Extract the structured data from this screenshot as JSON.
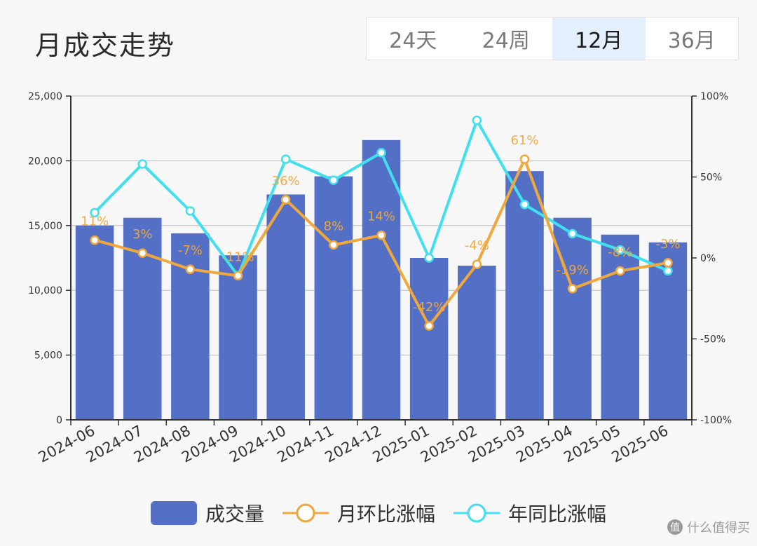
{
  "title": "月成交走势",
  "range_tabs": [
    {
      "label": "24天",
      "active": false
    },
    {
      "label": "24周",
      "active": false
    },
    {
      "label": "12月",
      "active": true
    },
    {
      "label": "36月",
      "active": false
    }
  ],
  "colors": {
    "bar": "#5470c6",
    "mom": "#f0a83c",
    "yoy": "#40e0ee",
    "active_tab_bg": "#e3effd"
  },
  "chart_data": {
    "type": "bar",
    "categories": [
      "2024-06",
      "2024-07",
      "2024-08",
      "2024-09",
      "2024-10",
      "2024-11",
      "2024-12",
      "2025-01",
      "2025-02",
      "2025-03",
      "2025-04",
      "2025-05",
      "2025-06"
    ],
    "left_axis": {
      "ylim": [
        0,
        25000
      ],
      "ticks": [
        0,
        5000,
        10000,
        15000,
        20000,
        25000
      ],
      "tick_labels": [
        "0",
        "5,000",
        "10,000",
        "15,000",
        "20,000",
        "25,000"
      ]
    },
    "right_axis": {
      "ylim": [
        -100,
        100
      ],
      "ticks": [
        -100,
        -50,
        0,
        50,
        100
      ],
      "tick_labels": [
        "-100%",
        "-50%",
        "0%",
        "50%",
        "100%"
      ]
    },
    "grid": true,
    "legend_position": "bottom",
    "series": [
      {
        "name": "成交量",
        "type": "bar",
        "axis": "left",
        "values": [
          15000,
          15600,
          14400,
          12700,
          17400,
          18800,
          21600,
          12500,
          11900,
          19200,
          15600,
          14300,
          13700
        ]
      },
      {
        "name": "月环比涨幅",
        "type": "line",
        "axis": "right",
        "values": [
          11,
          3,
          -7,
          -11,
          36,
          8,
          14,
          -42,
          -4,
          61,
          -19,
          -8,
          -3
        ],
        "labels": [
          "11%",
          "3%",
          "-7%",
          "-11%",
          "36%",
          "8%",
          "14%",
          "-42%",
          "-4%",
          "61%",
          "-19%",
          "-8%",
          "-3%"
        ]
      },
      {
        "name": "年同比涨幅",
        "type": "line",
        "axis": "right",
        "values": [
          28,
          58,
          29,
          -11,
          61,
          48,
          65,
          0,
          85,
          33,
          15,
          5,
          -8
        ]
      }
    ]
  },
  "watermark": {
    "logo": "值",
    "text": "什么值得买"
  }
}
